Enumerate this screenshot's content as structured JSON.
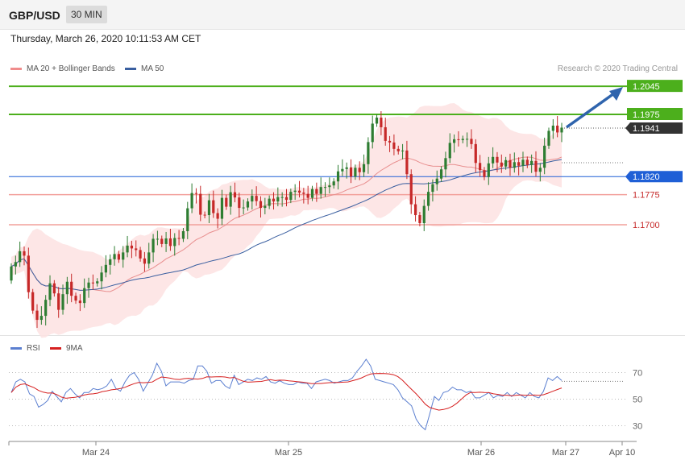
{
  "header": {
    "pair": "GBP/USD",
    "interval": "30 MIN"
  },
  "datetime": "Thursday, March 26, 2020 10:11:53 AM CET",
  "credit": "Research © 2020 Trading Central",
  "colors": {
    "up": "#2e7d32",
    "down": "#c62828",
    "target": "#4caf1c",
    "pivot": "#1f5fd6",
    "support": "#f2a09b",
    "support_text": "#c62828",
    "last": "#333333",
    "ma50": "#3a5fa0",
    "ma20": "#e88e8e",
    "band": "#fde2e2",
    "rsi": "#5b7fd0",
    "rsi_ma": "#d62020",
    "arrow": "#2f64ad"
  },
  "legend": {
    "ma20": "MA 20 + Bollinger Bands",
    "ma50": "MA 50",
    "rsi": "RSI",
    "rsi_ma": "9MA"
  },
  "price_levels": [
    {
      "label": "1.2045",
      "value": 1.2045,
      "kind": "target"
    },
    {
      "label": "1.1975",
      "value": 1.1975,
      "kind": "target"
    },
    {
      "label": "1.1941",
      "value": 1.1941,
      "kind": "last"
    },
    {
      "label": "1.1820",
      "value": 1.182,
      "kind": "pivot"
    },
    {
      "label": "1.1775",
      "value": 1.1775,
      "kind": "support"
    },
    {
      "label": "1.1700",
      "value": 1.17,
      "kind": "support"
    }
  ],
  "rsi_levels": [
    "70",
    "50",
    "30"
  ],
  "x_axis": [
    "Mar 24",
    "Mar 25",
    "Mar 26",
    "Mar 27",
    "Apr 10"
  ],
  "chart_data": {
    "type": "candlestick",
    "series_close": [
      1.1596,
      1.1607,
      1.1634,
      1.1623,
      1.1532,
      1.1486,
      1.1463,
      1.1473,
      1.1513,
      1.1554,
      1.1529,
      1.1488,
      1.1527,
      1.1558,
      1.1523,
      1.1511,
      1.1505,
      1.1542,
      1.1556,
      1.1554,
      1.1559,
      1.1581,
      1.16,
      1.1614,
      1.1627,
      1.1613,
      1.1631,
      1.1648,
      1.1641,
      1.1637,
      1.1616,
      1.1603,
      1.1631,
      1.1665,
      1.1665,
      1.1652,
      1.1666,
      1.1647,
      1.1667,
      1.1665,
      1.1684,
      1.1741,
      1.1779,
      1.1777,
      1.1725,
      1.1724,
      1.1761,
      1.1729,
      1.1715,
      1.1767,
      1.1745,
      1.1781,
      1.1768,
      1.1742,
      1.1743,
      1.1758,
      1.1772,
      1.1759,
      1.1742,
      1.1747,
      1.1765,
      1.1758,
      1.1769,
      1.1769,
      1.1762,
      1.1782,
      1.1785,
      1.178,
      1.1777,
      1.1767,
      1.1789,
      1.1777,
      1.1794,
      1.1794,
      1.1798,
      1.1808,
      1.1833,
      1.1839,
      1.1843,
      1.182,
      1.1842,
      1.1831,
      1.1851,
      1.1906,
      1.1952,
      1.1967,
      1.1943,
      1.1909,
      1.1905,
      1.1889,
      1.1883,
      1.1885,
      1.1826,
      1.1751,
      1.1724,
      1.1704,
      1.1747,
      1.1782,
      1.1801,
      1.1815,
      1.1838,
      1.1866,
      1.1904,
      1.1913,
      1.1911,
      1.1914,
      1.1914,
      1.1901,
      1.1854,
      1.1836,
      1.1819,
      1.1853,
      1.1869,
      1.1855,
      1.1845,
      1.1861,
      1.1842,
      1.1856,
      1.1847,
      1.1862,
      1.1849,
      1.1859,
      1.1832,
      1.1842,
      1.1897,
      1.1934,
      1.1947,
      1.193,
      1.1942
    ],
    "rsi": [
      55,
      63,
      65,
      63,
      54,
      52,
      44,
      46,
      49,
      56,
      52,
      48,
      55,
      58,
      54,
      51,
      55,
      55,
      58,
      57,
      58,
      60,
      65,
      58,
      56,
      63,
      68,
      70,
      65,
      56,
      62,
      68,
      77,
      71,
      60,
      63,
      63,
      63,
      62,
      64,
      65,
      75,
      75,
      71,
      62,
      64,
      64,
      60,
      58,
      68,
      61,
      63,
      65,
      64,
      66,
      65,
      67,
      63,
      62,
      64,
      62,
      61,
      61,
      63,
      62,
      62,
      58,
      63,
      64,
      65,
      64,
      62,
      63,
      64,
      64,
      66,
      71,
      75,
      80,
      75,
      65,
      64,
      63,
      62,
      61,
      57,
      51,
      48,
      45,
      35,
      30,
      27,
      39,
      52,
      49,
      55,
      56,
      59,
      57,
      57,
      55,
      56,
      51,
      51,
      53,
      55,
      51,
      53,
      52,
      55,
      52,
      55,
      53,
      51,
      55,
      52,
      51,
      56,
      66,
      64,
      67,
      64
    ]
  }
}
